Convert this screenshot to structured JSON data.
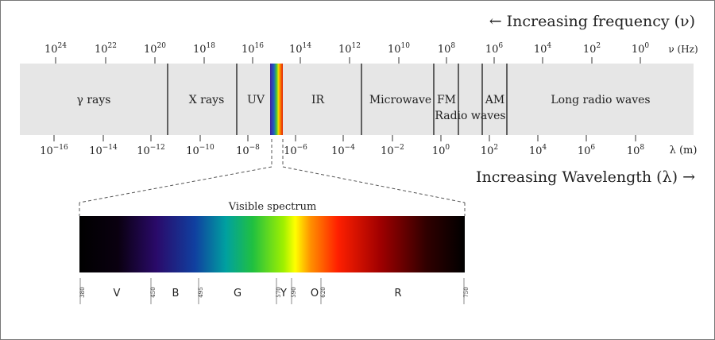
{
  "frequency_header": "← Increasing frequency (ν)",
  "frequency_ticks": [
    {
      "base": "10",
      "exp": "24"
    },
    {
      "base": "10",
      "exp": "22"
    },
    {
      "base": "10",
      "exp": "20"
    },
    {
      "base": "10",
      "exp": "18"
    },
    {
      "base": "10",
      "exp": "16"
    },
    {
      "base": "10",
      "exp": "14"
    },
    {
      "base": "10",
      "exp": "12"
    },
    {
      "base": "10",
      "exp": "10"
    },
    {
      "base": "10",
      "exp": "8"
    },
    {
      "base": "10",
      "exp": "6"
    },
    {
      "base": "10",
      "exp": "4"
    },
    {
      "base": "10",
      "exp": "2"
    },
    {
      "base": "10",
      "exp": "0"
    }
  ],
  "frequency_unit": "ν (Hz)",
  "bands": [
    "γ rays",
    "X rays",
    "UV",
    "IR",
    "Microwave",
    "FM",
    "Radio waves",
    "AM",
    "Long radio waves"
  ],
  "wavelength_ticks": [
    {
      "base": "10",
      "exp": "−16"
    },
    {
      "base": "10",
      "exp": "−14"
    },
    {
      "base": "10",
      "exp": "−12"
    },
    {
      "base": "10",
      "exp": "−10"
    },
    {
      "base": "10",
      "exp": "−8"
    },
    {
      "base": "10",
      "exp": "−6"
    },
    {
      "base": "10",
      "exp": "−4"
    },
    {
      "base": "10",
      "exp": "−2"
    },
    {
      "base": "10",
      "exp": "0"
    },
    {
      "base": "10",
      "exp": "2"
    },
    {
      "base": "10",
      "exp": "4"
    },
    {
      "base": "10",
      "exp": "6"
    },
    {
      "base": "10",
      "exp": "8"
    }
  ],
  "wavelength_unit": "λ (m)",
  "wavelength_footer": "Increasing Wavelength (λ) →",
  "visible": {
    "title": "Visible spectrum",
    "ticks": [
      "380",
      "450",
      "495",
      "570",
      "590",
      "620",
      "750"
    ],
    "colors": [
      "V",
      "B",
      "G",
      "Y",
      "O",
      "R"
    ]
  }
}
